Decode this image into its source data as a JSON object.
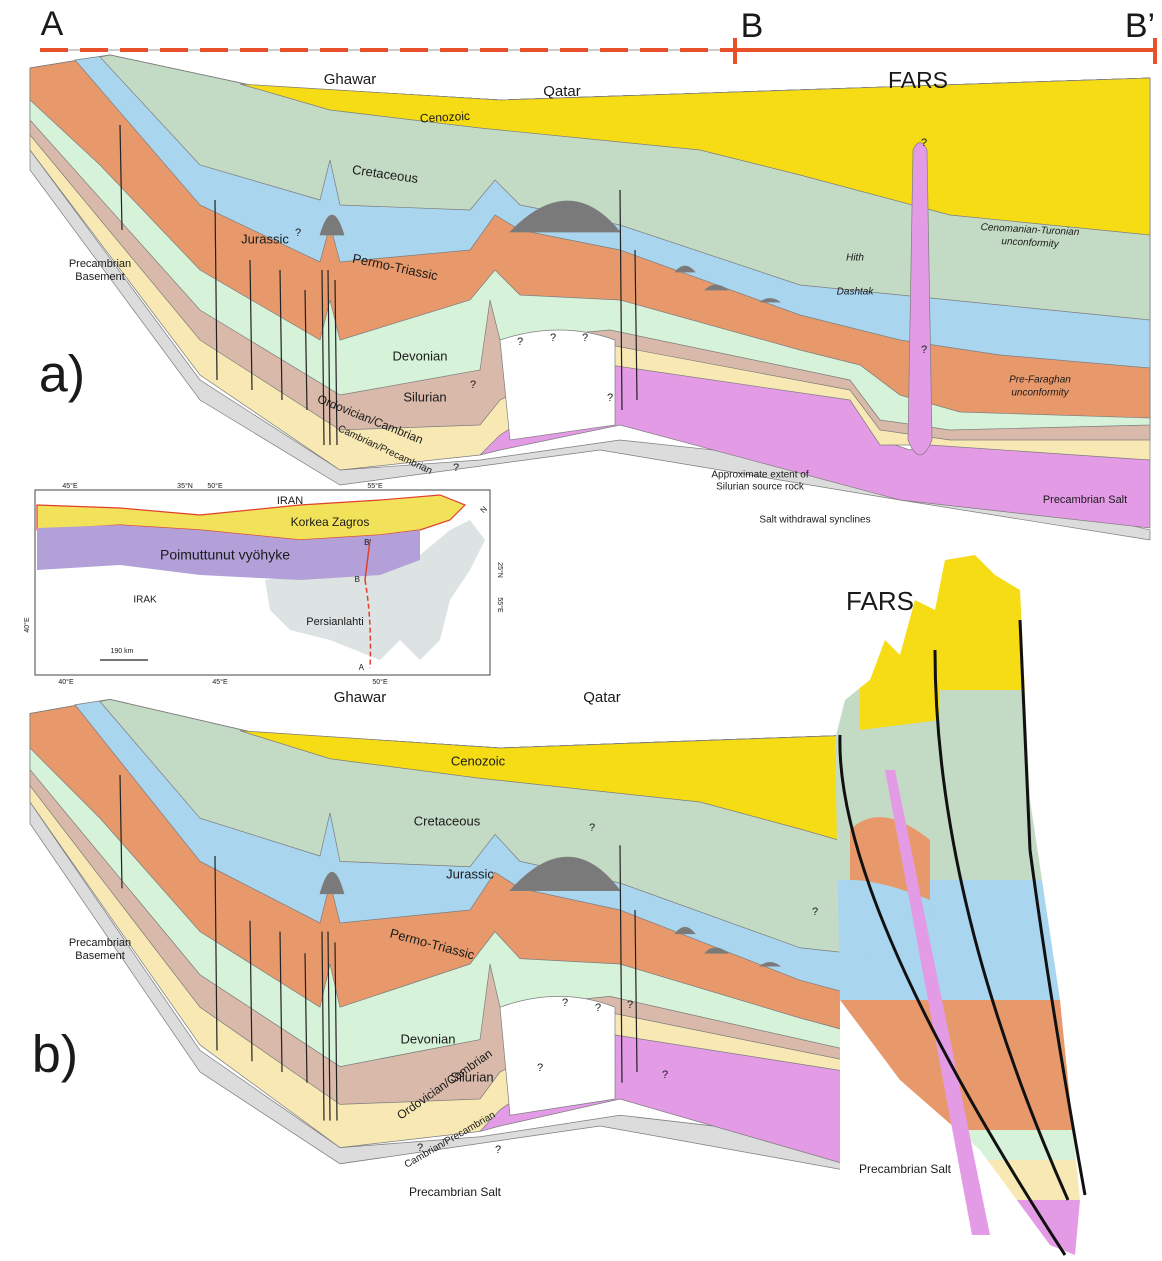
{
  "header": {
    "A": "A",
    "B": "B",
    "B_prime": "B’"
  },
  "panel_a": {
    "label": "a)",
    "ghawar": "Ghawar",
    "qatar": "Qatar",
    "fars": "FARS",
    "cenozoic": "Cenozoic",
    "cretaceous": "Cretaceous",
    "jurassic": "Jurassic",
    "permo_triassic": "Permo-Triassic",
    "devonian": "Devonian",
    "silurian": "Silurian",
    "ordovician_cambrian": "Ordovician/Cambrian",
    "cambrian_precambrian": "Cambrian/Precambrian",
    "basement": [
      "Precambrian",
      "Basement"
    ],
    "hith": "Hith",
    "dashtak": "Dashtak",
    "cenomanian_unconformity": [
      "Cenomanian-Turonian",
      "unconformity"
    ],
    "pre_faraghan_unconformity": [
      "Pre-Faraghan",
      "unconformity"
    ],
    "source_rock": [
      "Approximate extent of",
      "Silurian source rock"
    ],
    "salt_synclines": "Salt withdrawal synclines",
    "salt": "Precambrian Salt",
    "unknown": "?"
  },
  "map": {
    "top_ticks": [
      "45°E",
      "35°N",
      "50°E",
      "55°E"
    ],
    "right_ticks": [
      "25°N",
      "55°E"
    ],
    "left_tick": "40°E",
    "bottom_ticks": [
      "40°E",
      "45°E",
      "50°E"
    ],
    "iran": "IRAN",
    "zagros": "Korkea Zagros",
    "folded_zone": "Poimuttunut vyöhyke",
    "irak": "IRAK",
    "gulf": "Persianlahti",
    "scale": "190 km",
    "b_prime": "B'",
    "b": "B",
    "a": "A",
    "north": "N"
  },
  "panel_b": {
    "label": "b)",
    "ghawar": "Ghawar",
    "qatar": "Qatar",
    "fars": "FARS",
    "cenozoic": "Cenozoic",
    "cretaceous": "Cretaceous",
    "jurassic": "Jurassic",
    "permo_triassic": "Permo-Triassic",
    "devonian": "Devonian",
    "silurian": "Silurian",
    "ordovician_cambrian": "Ordovician/Cambrian",
    "cambrian_precambrian": "Cambrian/Precambrian",
    "basement": [
      "Precambrian",
      "Basement"
    ],
    "salt_center": "Precambrian Salt",
    "salt_right": "Precambrian Salt",
    "unknown": "?"
  }
}
